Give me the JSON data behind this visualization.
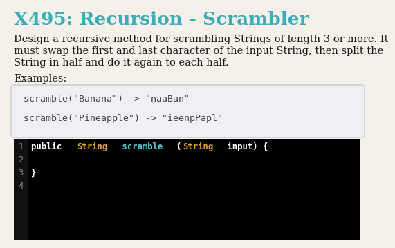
{
  "bg_color": "#f5f0e8",
  "title": "X495: Recursion - Scrambler",
  "title_color": "#3aacba",
  "title_fontsize": 19,
  "body_text_lines": [
    "Design a recursive method for scrambling Strings of length 3 or more. It",
    "must swap the first and last character of the input String, then split the",
    "String in half and do it again to each half."
  ],
  "body_color": "#1a1a1a",
  "body_fontsize": 10.5,
  "examples_label": "Examples:",
  "examples_color": "#1a1a1a",
  "examples_fontsize": 10.5,
  "code_box_bg": "#eef0f4",
  "code_box_border": "#c8ccd4",
  "example_line1": "scramble(\"Banana\") -> \"naaBan\"",
  "example_line2": "scramble(\"Pineapple\") -> \"ieenpPapl\"",
  "example_code_color": "#444444",
  "example_fontsize": 9.5,
  "editor_bg": "#000000",
  "gutter_bg": "#111111",
  "line_number_color": "#888888",
  "line_numbers": [
    "1",
    "2",
    "3",
    "4"
  ],
  "editor_fontsize": 8.8,
  "code_parts": [
    {
      "text": "public ",
      "color": "#ffffff"
    },
    {
      "text": "String",
      "color": "#e8a030"
    },
    {
      "text": " scramble",
      "color": "#5bc8d5"
    },
    {
      "text": "(",
      "color": "#ffffff"
    },
    {
      "text": "String",
      "color": "#e8a030"
    },
    {
      "text": " input) {",
      "color": "#ffffff"
    }
  ],
  "code_line3": "}",
  "code_line3_color": "#ffffff"
}
